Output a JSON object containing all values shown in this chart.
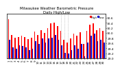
{
  "title": "Milwaukee Weather Barometric Pressure\nDaily High/Low",
  "title_fontsize": 3.8,
  "bar_width": 0.38,
  "high_color": "#ff0000",
  "low_color": "#0000cc",
  "background_color": "#ffffff",
  "ylim": [
    29.0,
    30.75
  ],
  "yticks": [
    29.0,
    29.2,
    29.4,
    29.6,
    29.8,
    30.0,
    30.2,
    30.4,
    30.6
  ],
  "ylabel_fontsize": 3.2,
  "xlabel_fontsize": 3.0,
  "days": [
    1,
    2,
    3,
    4,
    5,
    6,
    7,
    8,
    9,
    10,
    11,
    12,
    13,
    14,
    15,
    16,
    17,
    18,
    19,
    20,
    21,
    22,
    23,
    24,
    25,
    26,
    27,
    28,
    29,
    30
  ],
  "high": [
    30.55,
    29.92,
    29.82,
    29.85,
    29.88,
    29.85,
    29.75,
    29.8,
    30.05,
    29.92,
    30.1,
    30.0,
    30.18,
    30.38,
    30.42,
    30.28,
    30.08,
    29.72,
    29.62,
    29.78,
    29.98,
    29.88,
    30.02,
    29.58,
    30.08,
    30.32,
    30.38,
    30.12,
    30.18,
    30.08
  ],
  "low": [
    29.72,
    29.42,
    29.38,
    29.52,
    29.48,
    29.42,
    29.32,
    29.38,
    29.68,
    29.58,
    29.78,
    29.62,
    29.78,
    29.82,
    29.92,
    29.72,
    29.52,
    29.22,
    29.18,
    29.32,
    29.52,
    29.38,
    29.58,
    29.08,
    29.62,
    29.88,
    29.98,
    29.68,
    29.72,
    29.62
  ],
  "vline_days": [
    17,
    18,
    19
  ],
  "legend_high": "High",
  "legend_low": "Low"
}
